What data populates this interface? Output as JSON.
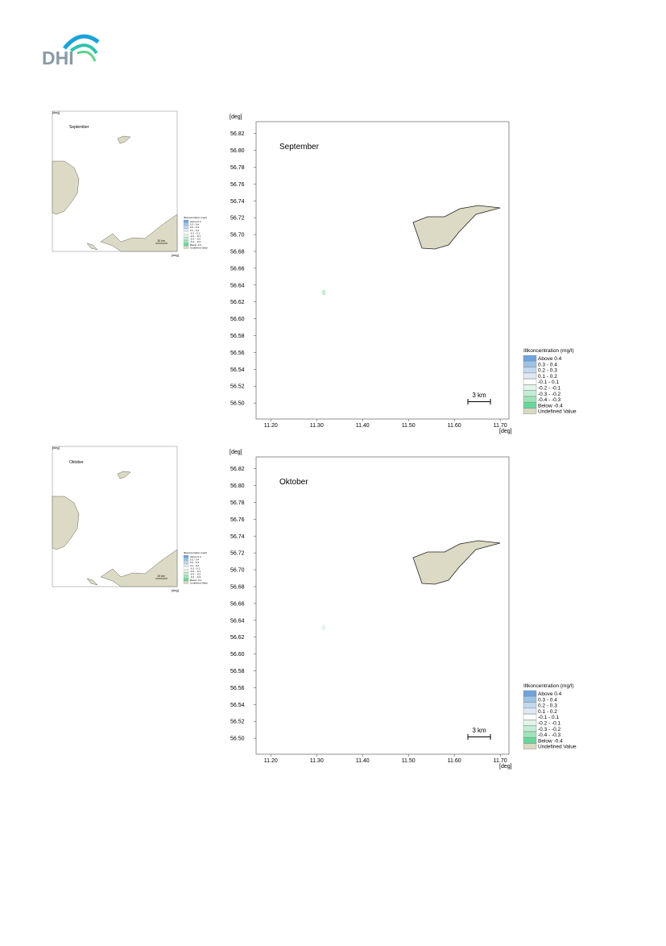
{
  "header": {
    "logo": "DHI"
  },
  "axes": {
    "unit_y": "[deg]",
    "unit_x": "[deg]",
    "xlim": [
      11.168,
      11.719
    ],
    "ylim": [
      56.481,
      56.834
    ],
    "xticks": [
      {
        "value": 11.2,
        "label": "11.20"
      },
      {
        "value": 11.3,
        "label": "11.30"
      },
      {
        "value": 11.4,
        "label": "11.40"
      },
      {
        "value": 11.5,
        "label": "11.50"
      },
      {
        "value": 11.6,
        "label": "11.60"
      },
      {
        "value": 11.7,
        "label": "11.70"
      }
    ],
    "yticks": [
      {
        "value": 56.5,
        "label": "56.50"
      },
      {
        "value": 56.52,
        "label": "56.52"
      },
      {
        "value": 56.54,
        "label": "56.54"
      },
      {
        "value": 56.56,
        "label": "56.56"
      },
      {
        "value": 56.58,
        "label": "56.58"
      },
      {
        "value": 56.6,
        "label": "56.60"
      },
      {
        "value": 56.62,
        "label": "56.62"
      },
      {
        "value": 56.64,
        "label": "56.64"
      },
      {
        "value": 56.66,
        "label": "56.66"
      },
      {
        "value": 56.68,
        "label": "56.68"
      },
      {
        "value": 56.7,
        "label": "56.70"
      },
      {
        "value": 56.72,
        "label": "56.72"
      },
      {
        "value": 56.74,
        "label": "56.74"
      },
      {
        "value": 56.76,
        "label": "56.76"
      },
      {
        "value": 56.78,
        "label": "56.78"
      },
      {
        "value": 56.8,
        "label": "56.80"
      },
      {
        "value": 56.82,
        "label": "56.82"
      }
    ],
    "scale_bar": "3 km",
    "thumb_scale_bar": "10 km"
  },
  "legend": {
    "title": "Iltkoncentration (mg/l)",
    "entries": [
      {
        "label": "Above  0.4",
        "color": "#6fa3dc"
      },
      {
        "label": "0.3 -  0.4",
        "color": "#9cc3e8"
      },
      {
        "label": "0.2 -  0.3",
        "color": "#c3d9ef"
      },
      {
        "label": "0.1 -  0.2",
        "color": "#dfe9f5"
      },
      {
        "label": "-0.1 -  0.1",
        "color": "#ffffff"
      },
      {
        "label": "-0.2 - -0.1",
        "color": "#e2f5ea"
      },
      {
        "label": "-0.3 - -0.2",
        "color": "#c2edd2"
      },
      {
        "label": "-0.4 - -0.3",
        "color": "#9fe4b9"
      },
      {
        "label": "Below -0.4",
        "color": "#66d99a"
      },
      {
        "label": "Undefined Value",
        "color": "#d9d8c1"
      }
    ]
  },
  "panels": [
    {
      "title": "September"
    },
    {
      "title": "Oktober"
    }
  ]
}
